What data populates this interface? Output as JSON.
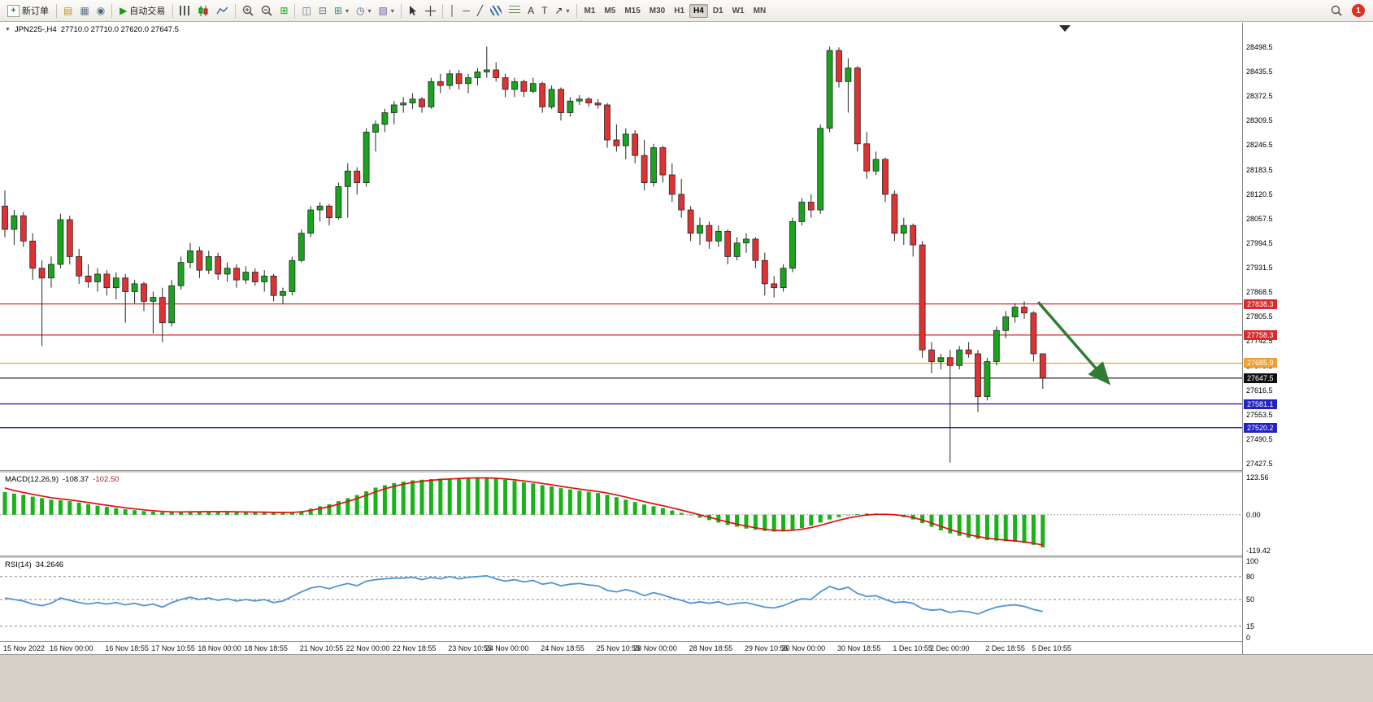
{
  "toolbar": {
    "new_order_label": "新订单",
    "autotrading_label": "自动交易",
    "text_label": "A",
    "textbox_label": "T",
    "timeframes": [
      "M1",
      "M5",
      "M15",
      "M30",
      "H1",
      "H4",
      "D1",
      "W1",
      "MN"
    ],
    "active_timeframe": "H4",
    "notification_count": "1"
  },
  "chart": {
    "symbol_label": "JPN225-,H4",
    "ohlc_label": "27710.0 27710.0 27620.0 27647.5"
  },
  "indicators": {
    "macd": {
      "name": "MACD(12,26,9)",
      "value1": "-108.37",
      "value2": "-102.50",
      "axis": [
        "123.56",
        "0.00",
        "-119.42"
      ]
    },
    "rsi": {
      "name": "RSI(14)",
      "value": "34.2646",
      "axis": [
        100,
        80,
        50,
        15,
        0
      ],
      "levels": [
        80,
        50,
        15
      ]
    }
  },
  "chart_data": {
    "type": "candlestick",
    "symbol": "JPN225-",
    "timeframe": "H4",
    "price_axis": {
      "min": 27427.5,
      "max": 28498.5,
      "ticks": [
        "28498.5",
        "28435.5",
        "28372.5",
        "28309.5",
        "28246.5",
        "28183.5",
        "28120.5",
        "28057.5",
        "27994.5",
        "27931.5",
        "27868.5",
        "27805.5",
        "27742.5",
        "27679.5",
        "27616.5",
        "27553.5",
        "27490.5",
        "27427.5"
      ]
    },
    "candles": [
      [
        28090,
        28130,
        28010,
        28030
      ],
      [
        28030,
        28080,
        27990,
        28065
      ],
      [
        28065,
        28075,
        27985,
        28000
      ],
      [
        28000,
        28020,
        27900,
        27930
      ],
      [
        27930,
        27950,
        27730,
        27905
      ],
      [
        27905,
        27960,
        27880,
        27940
      ],
      [
        27940,
        28070,
        27930,
        28055
      ],
      [
        28055,
        28065,
        27940,
        27960
      ],
      [
        27960,
        27980,
        27890,
        27910
      ],
      [
        27910,
        27940,
        27880,
        27895
      ],
      [
        27895,
        27930,
        27870,
        27915
      ],
      [
        27915,
        27925,
        27860,
        27880
      ],
      [
        27880,
        27920,
        27850,
        27905
      ],
      [
        27905,
        27915,
        27790,
        27870
      ],
      [
        27870,
        27900,
        27840,
        27890
      ],
      [
        27890,
        27895,
        27820,
        27845
      ],
      [
        27845,
        27870,
        27762,
        27855
      ],
      [
        27855,
        27880,
        27740,
        27790
      ],
      [
        27790,
        27900,
        27780,
        27885
      ],
      [
        27885,
        27960,
        27875,
        27945
      ],
      [
        27945,
        27995,
        27930,
        27975
      ],
      [
        27975,
        27985,
        27905,
        27925
      ],
      [
        27925,
        27975,
        27915,
        27960
      ],
      [
        27960,
        27970,
        27900,
        27915
      ],
      [
        27915,
        27945,
        27895,
        27930
      ],
      [
        27930,
        27940,
        27880,
        27900
      ],
      [
        27900,
        27935,
        27890,
        27920
      ],
      [
        27920,
        27930,
        27885,
        27895
      ],
      [
        27895,
        27925,
        27870,
        27910
      ],
      [
        27910,
        27915,
        27845,
        27860
      ],
      [
        27860,
        27880,
        27838,
        27870
      ],
      [
        27870,
        27960,
        27860,
        27950
      ],
      [
        27950,
        28030,
        27945,
        28020
      ],
      [
        28020,
        28090,
        28010,
        28080
      ],
      [
        28080,
        28100,
        28050,
        28090
      ],
      [
        28090,
        28095,
        28040,
        28060
      ],
      [
        28060,
        28150,
        28055,
        28140
      ],
      [
        28140,
        28200,
        28060,
        28180
      ],
      [
        28180,
        28190,
        28120,
        28150
      ],
      [
        28150,
        28290,
        28140,
        28280
      ],
      [
        28280,
        28310,
        28230,
        28300
      ],
      [
        28300,
        28340,
        28280,
        28330
      ],
      [
        28330,
        28360,
        28300,
        28350
      ],
      [
        28350,
        28370,
        28330,
        28355
      ],
      [
        28355,
        28380,
        28340,
        28365
      ],
      [
        28365,
        28370,
        28330,
        28345
      ],
      [
        28345,
        28420,
        28340,
        28410
      ],
      [
        28410,
        28430,
        28380,
        28400
      ],
      [
        28400,
        28440,
        28390,
        28430
      ],
      [
        28430,
        28440,
        28390,
        28405
      ],
      [
        28405,
        28430,
        28380,
        28420
      ],
      [
        28420,
        28445,
        28400,
        28435
      ],
      [
        28435,
        28500,
        28420,
        28440
      ],
      [
        28440,
        28460,
        28410,
        28420
      ],
      [
        28420,
        28430,
        28370,
        28390
      ],
      [
        28390,
        28420,
        28370,
        28410
      ],
      [
        28410,
        28415,
        28370,
        28385
      ],
      [
        28385,
        28420,
        28380,
        28405
      ],
      [
        28405,
        28410,
        28330,
        28345
      ],
      [
        28345,
        28400,
        28340,
        28390
      ],
      [
        28390,
        28395,
        28310,
        28330
      ],
      [
        28330,
        28370,
        28320,
        28360
      ],
      [
        28360,
        28375,
        28350,
        28365
      ],
      [
        28365,
        28370,
        28345,
        28355
      ],
      [
        28355,
        28365,
        28340,
        28350
      ],
      [
        28350,
        28355,
        28240,
        28260
      ],
      [
        28260,
        28300,
        28230,
        28245
      ],
      [
        28245,
        28290,
        28210,
        28275
      ],
      [
        28275,
        28285,
        28200,
        28220
      ],
      [
        28220,
        28260,
        28130,
        28150
      ],
      [
        28150,
        28250,
        28140,
        28240
      ],
      [
        28240,
        28245,
        28150,
        28170
      ],
      [
        28170,
        28200,
        28100,
        28120
      ],
      [
        28120,
        28160,
        28060,
        28080
      ],
      [
        28080,
        28090,
        28000,
        28020
      ],
      [
        28020,
        28060,
        27990,
        28040
      ],
      [
        28040,
        28050,
        27980,
        28000
      ],
      [
        28000,
        28040,
        27985,
        28025
      ],
      [
        28025,
        28030,
        27940,
        27960
      ],
      [
        27960,
        28010,
        27950,
        27995
      ],
      [
        27995,
        28020,
        27970,
        28005
      ],
      [
        28005,
        28010,
        27930,
        27950
      ],
      [
        27950,
        27970,
        27860,
        27890
      ],
      [
        27890,
        27910,
        27855,
        27880
      ],
      [
        27880,
        27940,
        27870,
        27930
      ],
      [
        27930,
        28060,
        27920,
        28050
      ],
      [
        28050,
        28110,
        28040,
        28100
      ],
      [
        28100,
        28120,
        28060,
        28080
      ],
      [
        28080,
        28300,
        28070,
        28290
      ],
      [
        28290,
        28500,
        28280,
        28490
      ],
      [
        28490,
        28498,
        28395,
        28410
      ],
      [
        28410,
        28470,
        28330,
        28445
      ],
      [
        28445,
        28450,
        28230,
        28250
      ],
      [
        28250,
        28280,
        28160,
        28180
      ],
      [
        28180,
        28230,
        28170,
        28210
      ],
      [
        28210,
        28215,
        28100,
        28120
      ],
      [
        28120,
        28130,
        28000,
        28020
      ],
      [
        28020,
        28060,
        27990,
        28040
      ],
      [
        28040,
        28045,
        27960,
        27990
      ],
      [
        27990,
        28000,
        27700,
        27720
      ],
      [
        27720,
        27740,
        27660,
        27690
      ],
      [
        27690,
        27710,
        27670,
        27700
      ],
      [
        27700,
        27720,
        27430,
        27680
      ],
      [
        27680,
        27730,
        27670,
        27720
      ],
      [
        27720,
        27740,
        27700,
        27710
      ],
      [
        27710,
        27720,
        27560,
        27600
      ],
      [
        27600,
        27700,
        27590,
        27690
      ],
      [
        27690,
        27780,
        27680,
        27770
      ],
      [
        27770,
        27820,
        27750,
        27805
      ],
      [
        27805,
        27840,
        27790,
        27830
      ],
      [
        27830,
        27845,
        27800,
        27815
      ],
      [
        27815,
        27820,
        27690,
        27710
      ],
      [
        27710,
        27710,
        27620,
        27647.5
      ]
    ],
    "hlines": [
      {
        "price": 27838.3,
        "label": "27838.3",
        "color": "#d92b2b",
        "badge": "#d92b2b"
      },
      {
        "price": 27758.3,
        "label": "27758.3",
        "color": "#d92b2b",
        "badge": "#d92b2b"
      },
      {
        "price": 27685.9,
        "label": "27685.9",
        "color": "#f0a030",
        "badge": "#f0a030"
      },
      {
        "price": 27647.5,
        "label": "27647.5",
        "color": "#3a3a3a",
        "badge": "#101010"
      },
      {
        "price": 27581.1,
        "label": "27581.1",
        "color": "#2222c0",
        "badge": "#2222c0"
      },
      {
        "price": 27520.2,
        "label": "27520.2",
        "color": "#2222c0",
        "badge": "#2222c0"
      }
    ],
    "macd_histogram": [
      75,
      70,
      66,
      60,
      55,
      50,
      48,
      45,
      40,
      35,
      30,
      26,
      22,
      18,
      15,
      12,
      10,
      8,
      8,
      9,
      10,
      10,
      11,
      10,
      10,
      9,
      9,
      8,
      8,
      7,
      7,
      8,
      12,
      20,
      28,
      35,
      45,
      55,
      65,
      78,
      90,
      98,
      105,
      110,
      114,
      116,
      118,
      120,
      121,
      122,
      123,
      123.56,
      122,
      120,
      116,
      112,
      108,
      104,
      98,
      94,
      88,
      84,
      80,
      76,
      72,
      66,
      58,
      50,
      42,
      34,
      28,
      22,
      14,
      6,
      -2,
      -10,
      -18,
      -26,
      -34,
      -40,
      -46,
      -50,
      -54,
      -56,
      -55,
      -50,
      -44,
      -36,
      -26,
      -16,
      -8,
      -2,
      2,
      4,
      4,
      2,
      -2,
      -8,
      -16,
      -28,
      -40,
      -52,
      -62,
      -70,
      -76,
      -80,
      -84,
      -86,
      -88,
      -90,
      -94,
      -100,
      -108.37
    ],
    "macd_range": {
      "max": 123.56,
      "min": -119.42
    },
    "rsi_values": [
      52,
      50,
      48,
      44,
      42,
      45,
      52,
      49,
      46,
      44,
      46,
      44,
      46,
      43,
      45,
      42,
      44,
      40,
      46,
      50,
      53,
      50,
      52,
      49,
      51,
      48,
      50,
      48,
      50,
      46,
      48,
      54,
      60,
      65,
      67,
      64,
      68,
      71,
      68,
      74,
      76,
      77,
      78,
      78,
      79,
      76,
      79,
      77,
      80,
      77,
      79,
      80,
      81,
      77,
      74,
      76,
      73,
      75,
      70,
      72,
      68,
      70,
      71,
      69,
      68,
      62,
      60,
      63,
      60,
      55,
      59,
      56,
      52,
      49,
      45,
      47,
      45,
      47,
      43,
      45,
      46,
      43,
      40,
      39,
      42,
      47,
      51,
      50,
      60,
      67,
      63,
      66,
      58,
      54,
      55,
      50,
      46,
      47,
      45,
      38,
      36,
      37,
      33,
      35,
      34,
      31,
      36,
      40,
      42,
      43,
      41,
      37,
      34.26
    ],
    "time_labels": [
      {
        "text": "15 Nov 2022",
        "bar": 0
      },
      {
        "text": "16 Nov 00:00",
        "bar": 5
      },
      {
        "text": "16 Nov 18:55",
        "bar": 11
      },
      {
        "text": "17 Nov 10:55",
        "bar": 16
      },
      {
        "text": "18 Nov 00:00",
        "bar": 21
      },
      {
        "text": "18 Nov 18:55",
        "bar": 26
      },
      {
        "text": "21 Nov 10:55",
        "bar": 32
      },
      {
        "text": "22 Nov 00:00",
        "bar": 37
      },
      {
        "text": "22 Nov 18:55",
        "bar": 42
      },
      {
        "text": "23 Nov 10:55",
        "bar": 48
      },
      {
        "text": "24 Nov 00:00",
        "bar": 52
      },
      {
        "text": "24 Nov 18:55",
        "bar": 58
      },
      {
        "text": "25 Nov 10:55",
        "bar": 64
      },
      {
        "text": "28 Nov 00:00",
        "bar": 68
      },
      {
        "text": "28 Nov 18:55",
        "bar": 74
      },
      {
        "text": "29 Nov 10:55",
        "bar": 80
      },
      {
        "text": "30 Nov 00:00",
        "bar": 84
      },
      {
        "text": "30 Nov 18:55",
        "bar": 90
      },
      {
        "text": "1 Dec 10:55",
        "bar": 96
      },
      {
        "text": "2 Dec 00:00",
        "bar": 100
      },
      {
        "text": "2 Dec 18:55",
        "bar": 106
      },
      {
        "text": "5 Dec 10:55",
        "bar": 111
      }
    ],
    "arrow_annotation": {
      "from_bar": 111.5,
      "from_price": 27843,
      "to_bar": 119,
      "to_price": 27638,
      "color": "#2e7d32"
    },
    "colors": {
      "up": "#18a41c",
      "down": "#e03232",
      "outline": "#262626",
      "macd_hist": "#19b219",
      "macd_signal": "#e01010",
      "rsi_line": "#4f93d6"
    }
  }
}
